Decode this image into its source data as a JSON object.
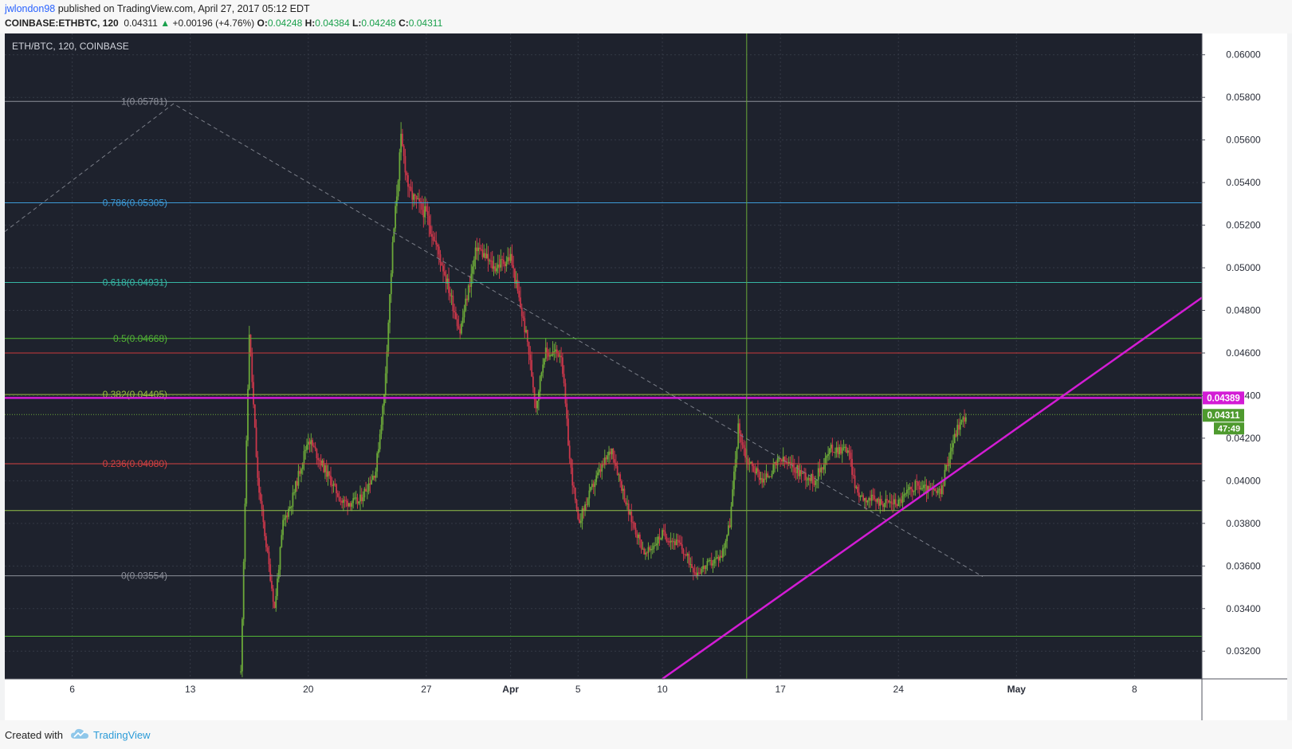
{
  "header": {
    "author": "jwlondon98",
    "published_text": "published on TradingView.com, April 27, 2017 05:12 EDT",
    "symbol": "COINBASE:ETHBTC, 120",
    "last": "0.04311",
    "change_arrow": "▲",
    "change": "+0.00196 (+4.76%)",
    "o_label": "O:",
    "o_value": "0.04248",
    "h_label": "H:",
    "h_value": "0.04384",
    "l_label": "L:",
    "l_value": "0.04248",
    "c_label": "C:",
    "c_value": "0.04311"
  },
  "footer": {
    "created_with": "Created with",
    "brand": "TradingView",
    "brand_icon": "tradingview-cloud-icon"
  },
  "colors": {
    "background": "#1e222d",
    "grid": "#343a46",
    "up": "#6ba839",
    "down": "#c9374a",
    "trendline": "#d31cd5",
    "resistance": "#d31cd5",
    "axis_text": "#2a2e39"
  },
  "chart_data": {
    "type": "candlestick",
    "title": "ETH/BTC, 120, COINBASE",
    "x_ticks": [
      "6",
      "13",
      "20",
      "27",
      "Apr",
      "5",
      "10",
      "17",
      "24",
      "May",
      "8"
    ],
    "y_ticks": [
      "0.06000",
      "0.05800",
      "0.05600",
      "0.05400",
      "0.05200",
      "0.05000",
      "0.04800",
      "0.04600",
      "0.04400",
      "0.04200",
      "0.04000",
      "0.03800",
      "0.03600",
      "0.03400",
      "0.03200"
    ],
    "ylim": [
      0.0307,
      0.061
    ],
    "xlim": [
      "2017-03-02",
      "2017-05-12"
    ],
    "grid": true,
    "fibonacci": [
      {
        "label": "1(0.05781)",
        "value": 0.05781,
        "color": "#8c8f99"
      },
      {
        "label": "0.786(0.05305)",
        "value": 0.05305,
        "color": "#3d9ad6"
      },
      {
        "label": "0.618(0.04931)",
        "value": 0.04931,
        "color": "#36b6a4"
      },
      {
        "label": "0.5(0.04668)",
        "value": 0.04668,
        "color": "#52b535"
      },
      {
        "label": "0.382(0.04405)",
        "value": 0.04405,
        "color": "#9bbf3e"
      },
      {
        "label": "0.236(0.04080)",
        "value": 0.0408,
        "color": "#d64141"
      },
      {
        "label": "0(0.03554)",
        "value": 0.03554,
        "color": "#8c8f99"
      }
    ],
    "horizontal_lines": [
      {
        "value": 0.046,
        "color": "#c93a3a"
      },
      {
        "value": 0.0386,
        "color": "#93c24a"
      },
      {
        "value": 0.0327,
        "color": "#52b535"
      }
    ],
    "resistance": {
      "value": 0.04389,
      "label": "0.04389"
    },
    "last_price": {
      "value": 0.04311,
      "label": "0.04311",
      "countdown": "47:49"
    },
    "trendline": {
      "from": {
        "date": "2017-04-10",
        "price": 0.0307
      },
      "to": {
        "date": "2017-05-12",
        "price": 0.0486
      }
    },
    "fib_diagonal": {
      "points": [
        {
          "date": "2017-03-02",
          "price": 0.0517
        },
        {
          "date": "2017-03-12",
          "price": 0.0577
        },
        {
          "date": "2017-04-29",
          "price": 0.0355
        }
      ]
    },
    "vertical_marker": {
      "date": "2017-04-15"
    },
    "anchor_points": [
      {
        "date": "2017-03-16",
        "price": 0.031
      },
      {
        "date": "2017-03-16.5",
        "price": 0.047
      },
      {
        "date": "2017-03-17",
        "price": 0.04
      },
      {
        "date": "2017-03-18",
        "price": 0.034
      },
      {
        "date": "2017-03-18.5",
        "price": 0.038
      },
      {
        "date": "2017-03-19",
        "price": 0.039
      },
      {
        "date": "2017-03-20",
        "price": 0.042
      },
      {
        "date": "2017-03-21",
        "price": 0.0405
      },
      {
        "date": "2017-03-22",
        "price": 0.039
      },
      {
        "date": "2017-03-23",
        "price": 0.039
      },
      {
        "date": "2017-03-24",
        "price": 0.0405
      },
      {
        "date": "2017-03-24.5",
        "price": 0.044
      },
      {
        "date": "2017-03-25",
        "price": 0.051
      },
      {
        "date": "2017-03-25.5",
        "price": 0.056
      },
      {
        "date": "2017-03-26",
        "price": 0.0535
      },
      {
        "date": "2017-03-27",
        "price": 0.0525
      },
      {
        "date": "2017-03-28",
        "price": 0.05
      },
      {
        "date": "2017-03-29",
        "price": 0.047
      },
      {
        "date": "2017-03-30",
        "price": 0.051
      },
      {
        "date": "2017-03-31",
        "price": 0.05
      },
      {
        "date": "2017-04-01",
        "price": 0.0505
      },
      {
        "date": "2017-04-02",
        "price": 0.0465
      },
      {
        "date": "2017-04-02.5",
        "price": 0.0435
      },
      {
        "date": "2017-04-03",
        "price": 0.046
      },
      {
        "date": "2017-04-04",
        "price": 0.046
      },
      {
        "date": "2017-04-04.5",
        "price": 0.041
      },
      {
        "date": "2017-04-05",
        "price": 0.038
      },
      {
        "date": "2017-04-06",
        "price": 0.04
      },
      {
        "date": "2017-04-07",
        "price": 0.0415
      },
      {
        "date": "2017-04-08",
        "price": 0.0385
      },
      {
        "date": "2017-04-09",
        "price": 0.0365
      },
      {
        "date": "2017-04-10",
        "price": 0.0375
      },
      {
        "date": "2017-04-11",
        "price": 0.037
      },
      {
        "date": "2017-04-12",
        "price": 0.0357
      },
      {
        "date": "2017-04-13",
        "price": 0.0362
      },
      {
        "date": "2017-04-13.5",
        "price": 0.0365
      },
      {
        "date": "2017-04-14",
        "price": 0.038
      },
      {
        "date": "2017-04-14.5",
        "price": 0.0425
      },
      {
        "date": "2017-04-15",
        "price": 0.041
      },
      {
        "date": "2017-04-16",
        "price": 0.04
      },
      {
        "date": "2017-04-17",
        "price": 0.041
      },
      {
        "date": "2017-04-18",
        "price": 0.0405
      },
      {
        "date": "2017-04-19",
        "price": 0.04
      },
      {
        "date": "2017-04-20",
        "price": 0.0415
      },
      {
        "date": "2017-04-21",
        "price": 0.0415
      },
      {
        "date": "2017-04-21.5",
        "price": 0.0395
      },
      {
        "date": "2017-04-22",
        "price": 0.0392
      },
      {
        "date": "2017-04-23",
        "price": 0.039
      },
      {
        "date": "2017-04-24",
        "price": 0.039
      },
      {
        "date": "2017-04-25",
        "price": 0.0398
      },
      {
        "date": "2017-04-26",
        "price": 0.0395
      },
      {
        "date": "2017-04-26.5",
        "price": 0.0394
      },
      {
        "date": "2017-04-27",
        "price": 0.0412
      },
      {
        "date": "2017-04-27.5",
        "price": 0.0425
      },
      {
        "date": "2017-04-28",
        "price": 0.0431
      }
    ]
  }
}
